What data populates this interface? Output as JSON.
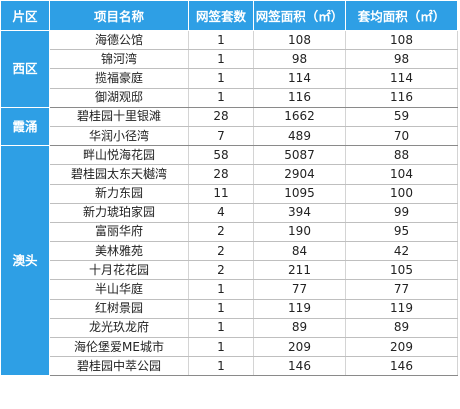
{
  "headers": [
    "片区",
    "项目名称",
    "网签套数",
    "网签面积（㎡）",
    "套均面积（㎡）"
  ],
  "groups": [
    {
      "district": "西区",
      "rows": [
        {
          "name": "海德公馆",
          "units": "1",
          "area": "108",
          "avg": "108"
        },
        {
          "name": "锦河湾",
          "units": "1",
          "area": "98",
          "avg": "98"
        },
        {
          "name": "揽福豪庭",
          "units": "1",
          "area": "114",
          "avg": "114"
        },
        {
          "name": "御湖观邸",
          "units": "1",
          "area": "116",
          "avg": "116"
        }
      ]
    },
    {
      "district": "霞涌",
      "rows": [
        {
          "name": "碧桂园十里银滩",
          "units": "28",
          "area": "1662",
          "avg": "59"
        },
        {
          "name": "华润小径湾",
          "units": "7",
          "area": "489",
          "avg": "70"
        }
      ]
    },
    {
      "district": "澳头",
      "rows": [
        {
          "name": "畔山悦海花园",
          "units": "58",
          "area": "5087",
          "avg": "88"
        },
        {
          "name": "碧桂园太东天樾湾",
          "units": "28",
          "area": "2904",
          "avg": "104"
        },
        {
          "name": "新力东园",
          "units": "11",
          "area": "1095",
          "avg": "100"
        },
        {
          "name": "新力琥珀家园",
          "units": "4",
          "area": "394",
          "avg": "99"
        },
        {
          "name": "富丽华府",
          "units": "2",
          "area": "190",
          "avg": "95"
        },
        {
          "name": "美林雅苑",
          "units": "2",
          "area": "84",
          "avg": "42"
        },
        {
          "name": "十月花花园",
          "units": "2",
          "area": "211",
          "avg": "105"
        },
        {
          "name": "半山华庭",
          "units": "1",
          "area": "77",
          "avg": "77"
        },
        {
          "name": "红树景园",
          "units": "1",
          "area": "119",
          "avg": "119"
        },
        {
          "name": "龙光玖龙府",
          "units": "1",
          "area": "89",
          "avg": "89"
        },
        {
          "name": "海伦堡爱ME城市",
          "units": "1",
          "area": "209",
          "avg": "209"
        },
        {
          "name": "碧桂园中萃公园",
          "units": "1",
          "area": "146",
          "avg": "146"
        }
      ]
    }
  ],
  "colors": {
    "header_bg": "#2e9fe5",
    "header_text": "#ffffff",
    "row_text": "#222222"
  }
}
